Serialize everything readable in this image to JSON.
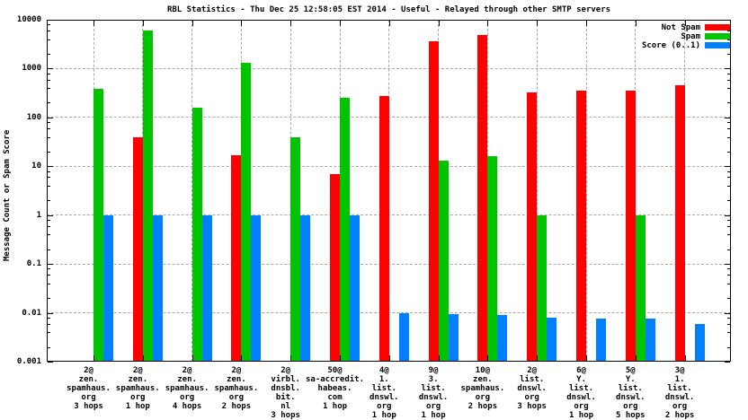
{
  "chart_data": {
    "type": "bar",
    "title": "RBL Statistics - Thu Dec 25 12:58:05 EST 2014 - Useful - Relayed through other SMTP servers",
    "xlabel": "",
    "ylabel": "Message Count or Spam Score",
    "y_scale": "log10",
    "ylim": [
      0.001,
      10000
    ],
    "ytick_labels": [
      "10000",
      "1000",
      "100",
      "10",
      "1",
      "0.1",
      "0.01",
      "0.001"
    ],
    "grid": true,
    "legend_position": "top-right-inside",
    "background_color": "#ffffff",
    "grid_color": "#a8a8a8",
    "categories": [
      {
        "lines": [
          "2@",
          "zen.",
          "spamhaus.",
          "org",
          "3 hops"
        ]
      },
      {
        "lines": [
          "2@",
          "zen.",
          "spamhaus.",
          "org",
          "1 hop"
        ]
      },
      {
        "lines": [
          "2@",
          "zen.",
          "spamhaus.",
          "org",
          "4 hops"
        ]
      },
      {
        "lines": [
          "2@",
          "zen.",
          "spamhaus.",
          "org",
          "2 hops"
        ]
      },
      {
        "lines": [
          "2@",
          "virbl.",
          "dnsbl.",
          "bit.",
          "nl",
          "3 hops"
        ]
      },
      {
        "lines": [
          "50@",
          "sa-accredit.",
          "habeas.",
          "com",
          "1 hop"
        ]
      },
      {
        "lines": [
          "4@",
          "1.",
          "list.",
          "dnswl.",
          "org",
          "1 hop"
        ]
      },
      {
        "lines": [
          "9@",
          "3.",
          "list.",
          "dnswl.",
          "org",
          "1 hop"
        ]
      },
      {
        "lines": [
          "10@",
          "zen.",
          "spamhaus.",
          "org",
          "2 hops"
        ]
      },
      {
        "lines": [
          "2@",
          "list.",
          "dnswl.",
          "org",
          "3 hops"
        ]
      },
      {
        "lines": [
          "6@",
          "Y.",
          "list.",
          "dnswl.",
          "org",
          "1 hop"
        ]
      },
      {
        "lines": [
          "5@",
          "Y.",
          "list.",
          "dnswl.",
          "org",
          "5 hops"
        ]
      },
      {
        "lines": [
          "3@",
          "1.",
          "list.",
          "dnswl.",
          "org",
          "2 hops"
        ]
      }
    ],
    "series": [
      {
        "name": "Not Spam",
        "color": "#ff0000",
        "values": [
          null,
          40,
          null,
          17,
          null,
          7,
          270,
          3600,
          4900,
          330,
          350,
          360,
          450
        ]
      },
      {
        "name": "Spam",
        "color": "#00c400",
        "values": [
          390,
          6000,
          160,
          1300,
          40,
          250,
          null,
          13,
          16,
          1,
          null,
          1,
          null
        ]
      },
      {
        "name": "Score (0..1)",
        "color": "#0080ff",
        "values": [
          1,
          1,
          1,
          1,
          1,
          1,
          0.01,
          0.0095,
          0.009,
          0.008,
          0.0075,
          0.0075,
          0.006
        ]
      }
    ]
  }
}
